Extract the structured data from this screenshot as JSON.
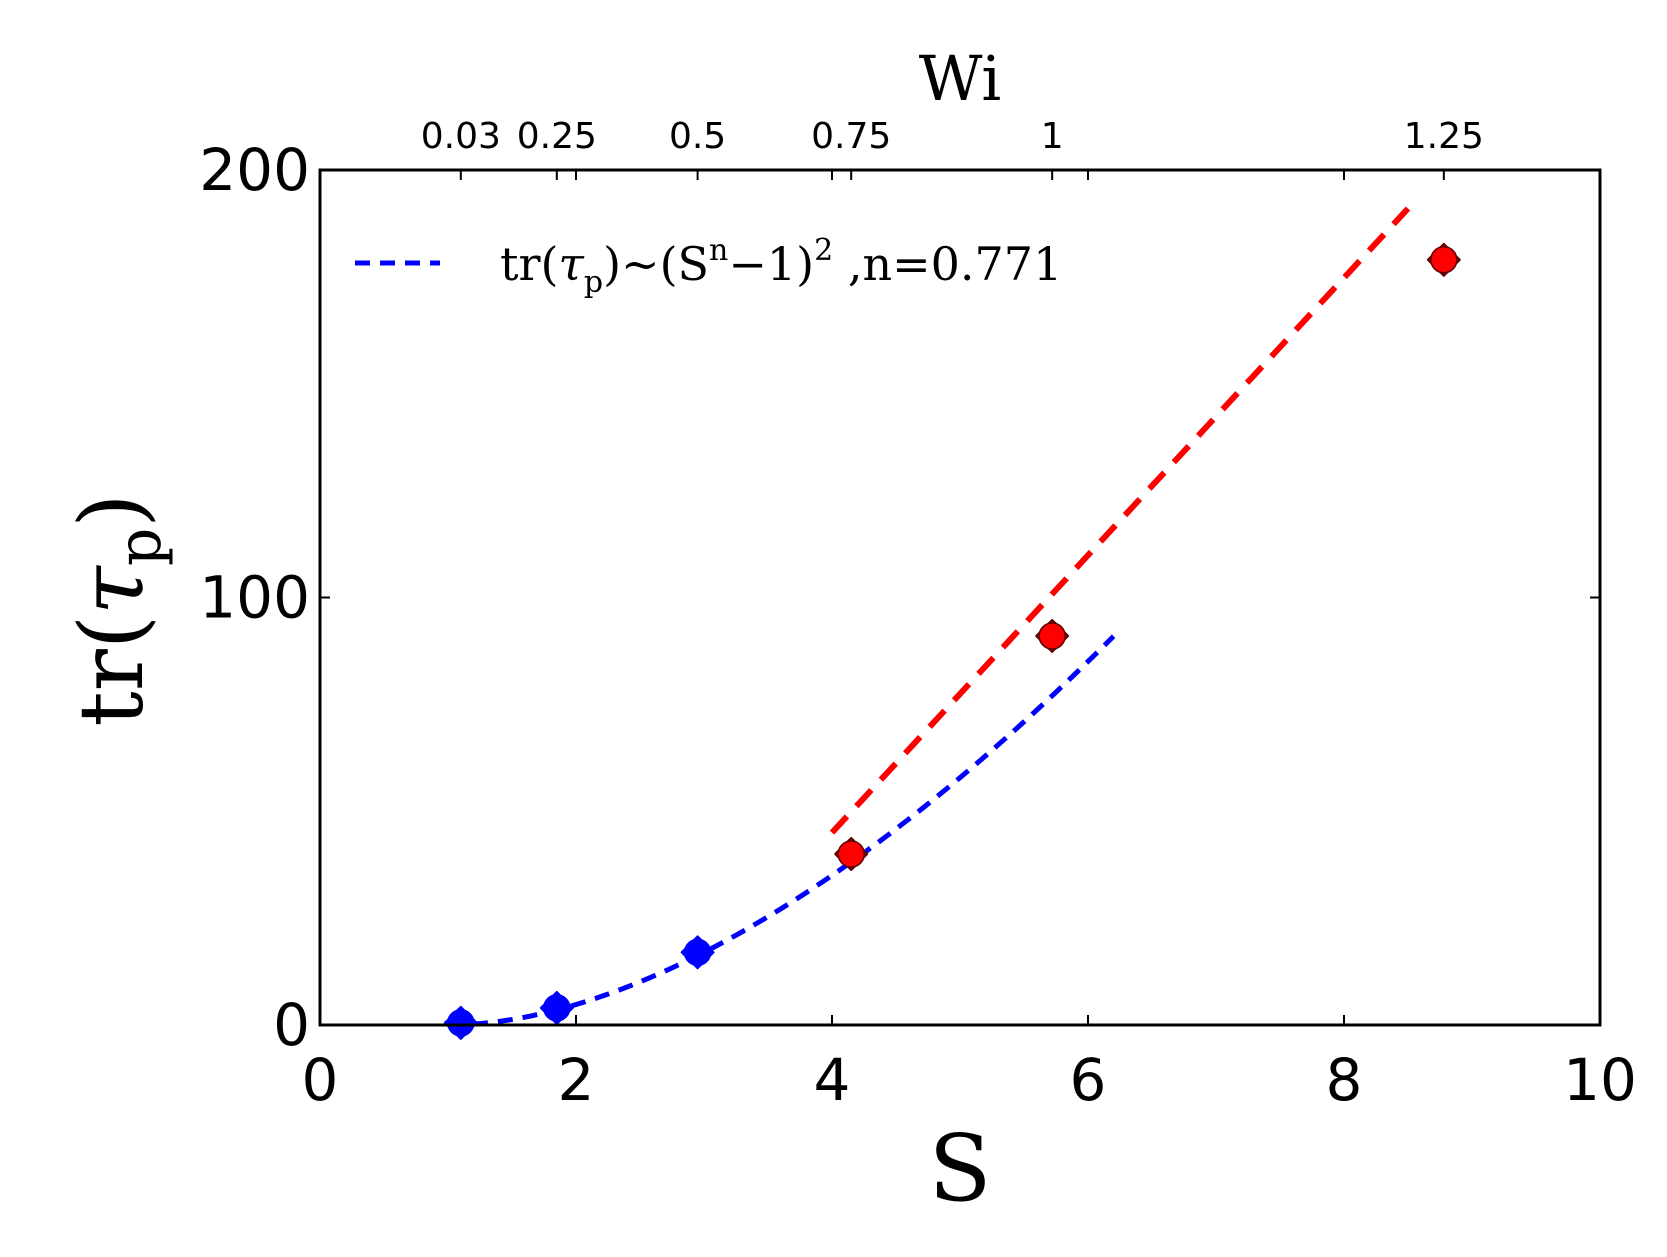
{
  "chart_data": {
    "type": "scatter",
    "xlabel": "S",
    "ylabel": {
      "main": "tr(",
      "symbol": "τ",
      "sub": "p",
      "close": ")"
    },
    "top_axis_label": "Wi",
    "xlim": [
      0,
      10
    ],
    "ylim": [
      0,
      200
    ],
    "x_ticks": [
      0,
      2,
      4,
      6,
      8,
      10
    ],
    "x_tick_labels": [
      "0",
      "2",
      "4",
      "6",
      "8",
      "10"
    ],
    "y_ticks": [
      0,
      100,
      200
    ],
    "y_tick_labels": [
      "0",
      "100",
      "200"
    ],
    "top_ticks": [
      {
        "x": 1.1,
        "label": "0.03"
      },
      {
        "x": 1.85,
        "label": "0.25"
      },
      {
        "x": 2.95,
        "label": "0.5"
      },
      {
        "x": 4.15,
        "label": "0.75"
      },
      {
        "x": 5.72,
        "label": "1"
      },
      {
        "x": 8.78,
        "label": "1.25"
      }
    ],
    "grid": false,
    "legend_position": "top-left",
    "legend": {
      "prefix": "tr(",
      "symbol": "τ",
      "sub": "p",
      "mid": ")~(S",
      "sup_n": "n",
      "minus": "−1)",
      "sup_2": "2",
      "suffix": " ,n=0.771"
    },
    "series": [
      {
        "kind": "points",
        "color": "#0000ff",
        "points": [
          [
            1.1,
            0.5
          ],
          [
            1.85,
            4.0
          ],
          [
            2.95,
            17.0
          ]
        ]
      },
      {
        "kind": "points",
        "color": "#ff0000",
        "points": [
          [
            4.15,
            40.0
          ],
          [
            5.72,
            91.0
          ],
          [
            8.78,
            179.0
          ]
        ]
      },
      {
        "kind": "fit",
        "color": "#0000ff",
        "n": 0.771,
        "x_range": [
          1.0,
          6.2
        ]
      },
      {
        "kind": "line",
        "color": "#ff0000",
        "points": [
          [
            4.0,
            45.0
          ],
          [
            8.5,
            191.0
          ]
        ]
      }
    ]
  }
}
